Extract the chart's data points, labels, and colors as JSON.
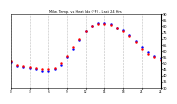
{
  "title": "Milw. Temp. vs Heat Idx (°F) - Last 24 Hrs",
  "bg_color": "#ffffff",
  "plot_bg_color": "#ffffff",
  "grid_color": "#bbbbbb",
  "line1_color": "#ff0000",
  "line2_color": "#0000ff",
  "ylim": [
    30,
    90
  ],
  "yticks": [
    30,
    35,
    40,
    45,
    50,
    55,
    60,
    65,
    70,
    75,
    80,
    85,
    90
  ],
  "hours": [
    0,
    1,
    2,
    3,
    4,
    5,
    6,
    7,
    8,
    9,
    10,
    11,
    12,
    13,
    14,
    15,
    16,
    17,
    18,
    19,
    20,
    21,
    22,
    23,
    24
  ],
  "temp": [
    52,
    49,
    48,
    47,
    46,
    45,
    45,
    46,
    50,
    56,
    63,
    70,
    76,
    80,
    82,
    82,
    81,
    79,
    76,
    72,
    67,
    62,
    58,
    55,
    53
  ],
  "heat_idx": [
    51,
    48,
    47,
    46,
    45,
    44,
    44,
    45,
    49,
    55,
    62,
    69,
    76,
    80,
    83,
    83,
    82,
    79,
    77,
    73,
    68,
    63,
    59,
    56,
    54
  ],
  "vline_hours": [
    0,
    3,
    6,
    9,
    12,
    15,
    18,
    21,
    24
  ],
  "xtick_labels": [
    "0",
    "3",
    "6",
    "9",
    "12",
    "15",
    "18",
    "21",
    "24"
  ]
}
